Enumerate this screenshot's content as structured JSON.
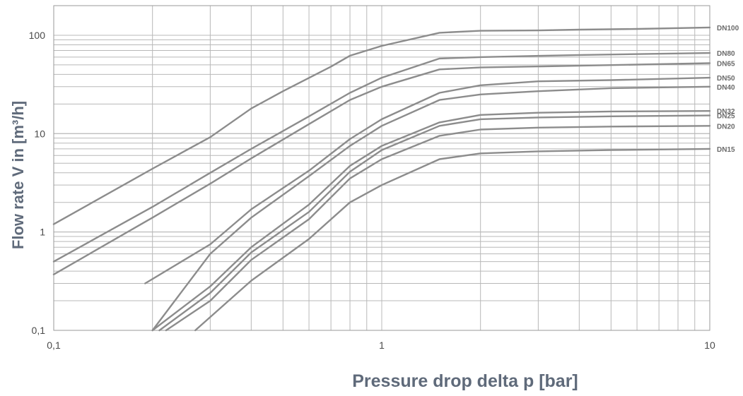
{
  "chart_data": {
    "type": "line",
    "title": "",
    "xlabel": "Pressure drop delta p [bar]",
    "ylabel": "Flow rate V in [m³/h]",
    "xscale": "log",
    "yscale": "log",
    "xlim": [
      0.1,
      10
    ],
    "ylim": [
      0.1,
      200
    ],
    "x_ticks": [
      {
        "value": 0.1,
        "label": "0,1"
      },
      {
        "value": 1,
        "label": "1"
      },
      {
        "value": 10,
        "label": "10"
      }
    ],
    "y_ticks": [
      {
        "value": 0.1,
        "label": "0,1"
      },
      {
        "value": 1,
        "label": "1"
      },
      {
        "value": 10,
        "label": "10"
      },
      {
        "value": 100,
        "label": "100"
      }
    ],
    "grid": true,
    "legend": "right-edge inline labels",
    "colors": {
      "series": "#8c8c8c",
      "grid": "#b8b8b8",
      "axis_title": "#5f6a7a",
      "tick": "#4a4a4a"
    },
    "series": [
      {
        "name": "DN100",
        "points": [
          [
            0.1,
            1.2
          ],
          [
            0.2,
            4.4
          ],
          [
            0.3,
            9.2
          ],
          [
            0.4,
            18
          ],
          [
            0.5,
            27
          ],
          [
            0.7,
            48
          ],
          [
            0.8,
            62
          ],
          [
            1,
            78
          ],
          [
            1.5,
            106
          ],
          [
            2,
            111
          ],
          [
            3,
            112
          ],
          [
            4,
            114
          ],
          [
            6,
            116
          ],
          [
            10,
            120
          ]
        ]
      },
      {
        "name": "DN80",
        "points": [
          [
            0.1,
            0.5
          ],
          [
            0.2,
            1.8
          ],
          [
            0.3,
            4
          ],
          [
            0.4,
            7
          ],
          [
            0.6,
            15
          ],
          [
            0.8,
            26
          ],
          [
            1,
            37
          ],
          [
            1.5,
            58
          ],
          [
            2,
            60
          ],
          [
            4,
            63
          ],
          [
            10,
            66
          ]
        ]
      },
      {
        "name": "DN65",
        "points": [
          [
            0.1,
            0.37
          ],
          [
            0.2,
            1.4
          ],
          [
            0.3,
            3.1
          ],
          [
            0.4,
            5.6
          ],
          [
            0.6,
            12.5
          ],
          [
            0.8,
            22
          ],
          [
            1,
            30
          ],
          [
            1.5,
            45
          ],
          [
            2,
            47
          ],
          [
            4,
            49
          ],
          [
            10,
            52
          ]
        ]
      },
      {
        "name": "DN50",
        "points": [
          [
            0.19,
            0.3
          ],
          [
            0.3,
            0.75
          ],
          [
            0.4,
            1.7
          ],
          [
            0.6,
            4.2
          ],
          [
            0.8,
            8.8
          ],
          [
            1,
            14
          ],
          [
            1.5,
            26
          ],
          [
            2,
            31
          ],
          [
            3,
            34
          ],
          [
            5,
            35
          ],
          [
            10,
            37
          ]
        ]
      },
      {
        "name": "DN40",
        "points": [
          [
            0.2,
            0.1
          ],
          [
            0.3,
            0.6
          ],
          [
            0.4,
            1.4
          ],
          [
            0.6,
            3.7
          ],
          [
            0.8,
            7.5
          ],
          [
            1,
            12
          ],
          [
            1.5,
            22
          ],
          [
            2,
            25
          ],
          [
            3,
            27
          ],
          [
            5,
            29
          ],
          [
            10,
            30
          ]
        ]
      },
      {
        "name": "DN32",
        "points": [
          [
            0.2,
            0.1
          ],
          [
            0.3,
            0.28
          ],
          [
            0.4,
            0.7
          ],
          [
            0.6,
            1.9
          ],
          [
            0.8,
            4.7
          ],
          [
            1,
            7.5
          ],
          [
            1.5,
            13
          ],
          [
            2,
            15.5
          ],
          [
            3,
            16.3
          ],
          [
            5,
            16.8
          ],
          [
            10,
            17
          ]
        ]
      },
      {
        "name": "DN25",
        "points": [
          [
            0.21,
            0.1
          ],
          [
            0.3,
            0.24
          ],
          [
            0.4,
            0.62
          ],
          [
            0.6,
            1.6
          ],
          [
            0.8,
            4.1
          ],
          [
            1,
            6.8
          ],
          [
            1.5,
            12
          ],
          [
            2,
            14
          ],
          [
            3,
            14.6
          ],
          [
            5,
            15
          ],
          [
            10,
            15.3
          ]
        ]
      },
      {
        "name": "DN20",
        "points": [
          [
            0.22,
            0.1
          ],
          [
            0.3,
            0.2
          ],
          [
            0.4,
            0.52
          ],
          [
            0.6,
            1.35
          ],
          [
            0.8,
            3.5
          ],
          [
            1,
            5.5
          ],
          [
            1.5,
            9.5
          ],
          [
            2,
            11
          ],
          [
            3,
            11.5
          ],
          [
            5,
            11.8
          ],
          [
            10,
            12
          ]
        ]
      },
      {
        "name": "DN15",
        "points": [
          [
            0.27,
            0.1
          ],
          [
            0.4,
            0.32
          ],
          [
            0.6,
            0.85
          ],
          [
            0.8,
            2
          ],
          [
            1,
            3
          ],
          [
            1.5,
            5.5
          ],
          [
            2,
            6.3
          ],
          [
            3,
            6.6
          ],
          [
            5,
            6.8
          ],
          [
            10,
            7
          ]
        ]
      }
    ]
  }
}
